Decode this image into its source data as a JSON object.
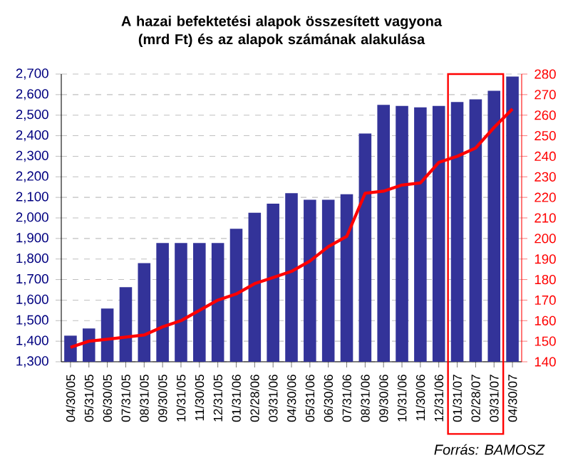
{
  "chart_data": {
    "type": "bar",
    "title": "A hazai befektetési alapok összesített vagyona (mrd Ft) és az alapok számának alakulása",
    "categories": [
      "04/30/05",
      "05/31/05",
      "06/30/05",
      "07/31/05",
      "08/31/05",
      "09/30/05",
      "10/31/05",
      "11/30/05",
      "12/31/05",
      "01/31/06",
      "02/28/06",
      "03/31/06",
      "04/30/06",
      "05/31/06",
      "06/30/06",
      "07/31/06",
      "08/31/06",
      "09/30/06",
      "10/31/06",
      "11/30/06",
      "12/31/06",
      "01/31/07",
      "02/28/07",
      "03/31/07",
      "04/30/07"
    ],
    "series": [
      {
        "color": "#333399",
        "values": [
          1427,
          1462,
          1559,
          1663,
          1780,
          1878,
          1878,
          1878,
          1878,
          1947,
          2025,
          2069,
          2120,
          2088,
          2088,
          2115,
          2411,
          2550,
          2545,
          2538,
          2545,
          2564,
          2577,
          2619,
          2688
        ]
      },
      {
        "type": "line",
        "axis": "y2",
        "color": "#ff0000",
        "values": [
          147,
          150,
          151,
          152,
          153,
          157,
          160,
          165,
          170,
          173,
          178,
          181,
          184,
          189,
          196,
          201,
          222,
          223,
          226,
          227,
          237,
          240,
          244,
          254,
          263
        ]
      }
    ],
    "ylim": [
      1300,
      2700
    ],
    "yticks": [
      {
        "value": 1300,
        "label": "1,300"
      },
      {
        "value": 1400,
        "label": "1,400"
      },
      {
        "value": 1500,
        "label": "1,500"
      },
      {
        "value": 1600,
        "label": "1,600"
      },
      {
        "value": 1700,
        "label": "1,700"
      },
      {
        "value": 1800,
        "label": "1,800"
      },
      {
        "value": 1900,
        "label": "1,900"
      },
      {
        "value": 2000,
        "label": "2,000"
      },
      {
        "value": 2100,
        "label": "2,100"
      },
      {
        "value": 2200,
        "label": "2,200"
      },
      {
        "value": 2300,
        "label": "2,300"
      },
      {
        "value": 2400,
        "label": "2,400"
      },
      {
        "value": 2500,
        "label": "2,500"
      },
      {
        "value": 2600,
        "label": "2,600"
      },
      {
        "value": 2700,
        "label": "2,700"
      }
    ],
    "y2lim": [
      140,
      280
    ],
    "y2ticks": [
      140,
      150,
      160,
      170,
      180,
      190,
      200,
      210,
      220,
      230,
      240,
      250,
      260,
      270,
      280
    ],
    "grid": "y",
    "annotations": [
      "*Forrás: BAMOSZ*"
    ]
  }
}
